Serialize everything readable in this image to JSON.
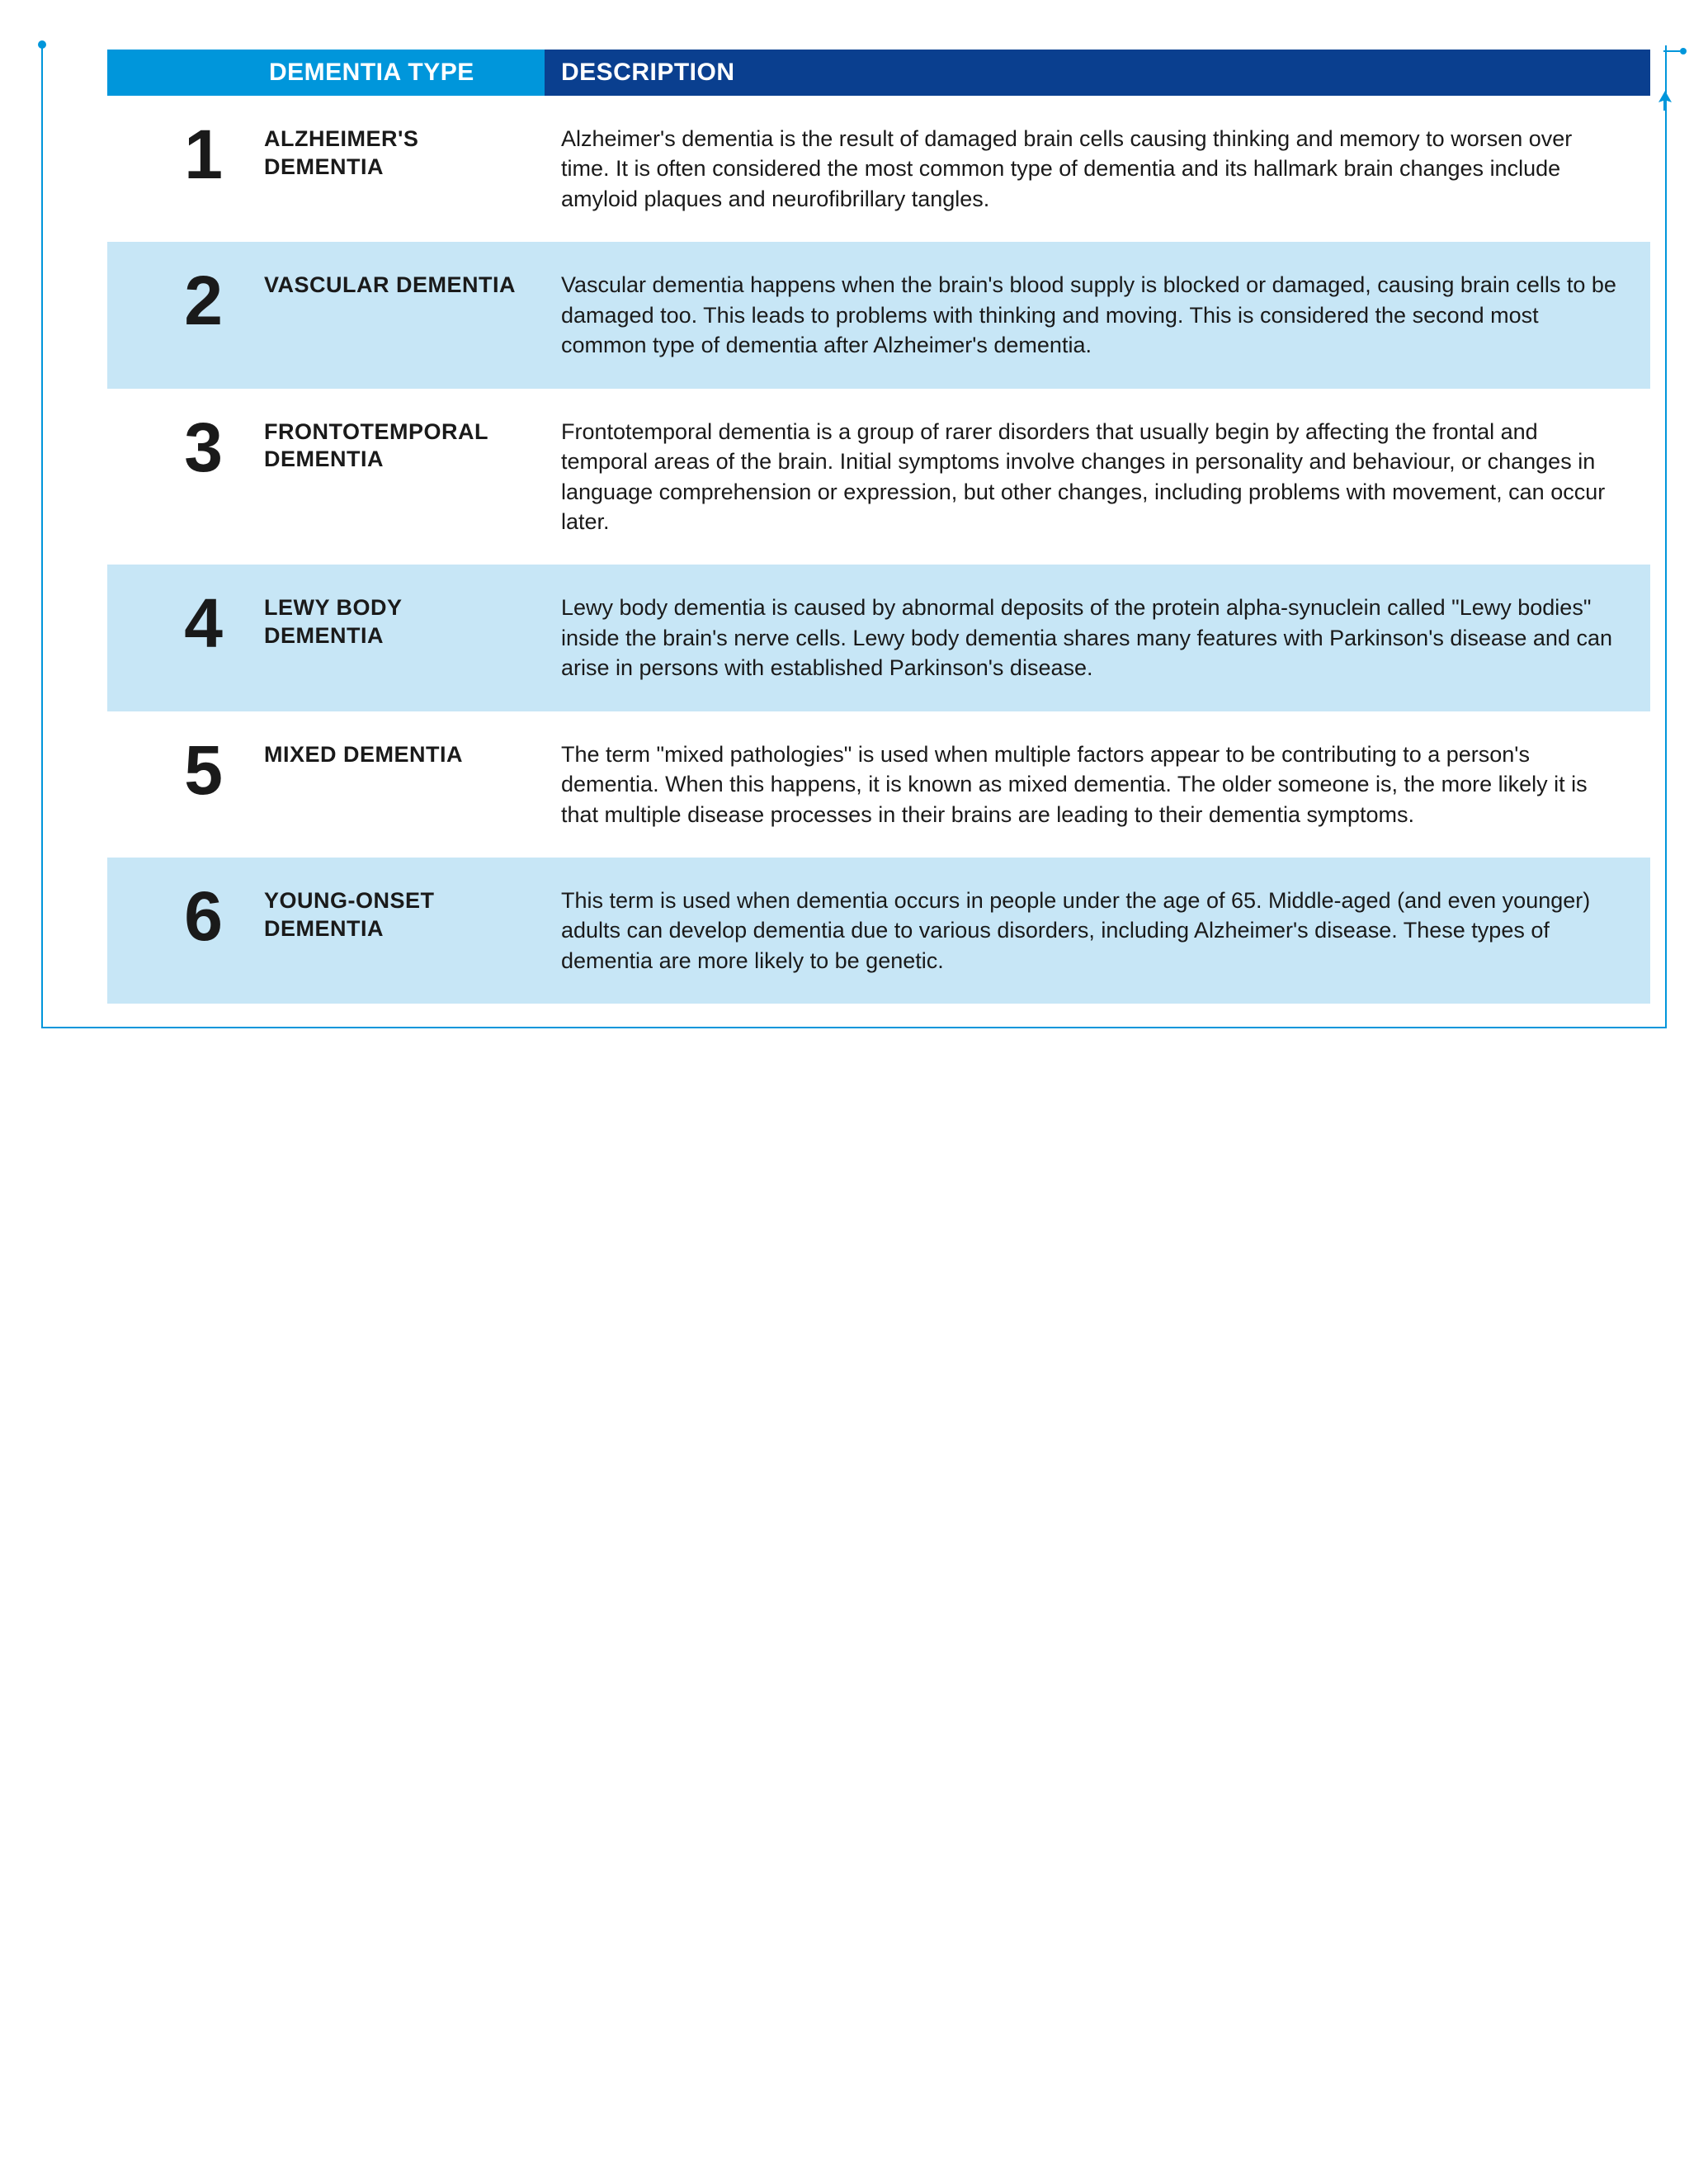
{
  "colors": {
    "header_num_bg": "#0096db",
    "header_type_bg": "#0096db",
    "header_desc_bg": "#0a3f8f",
    "header_text": "#ffffff",
    "row_odd_bg": "#ffffff",
    "row_even_bg": "#c7e6f6",
    "text": "#1a1a1a",
    "frame": "#0096db",
    "arrow": "#0096db"
  },
  "typography": {
    "header_fontsize": 30,
    "num_fontsize": 84,
    "type_fontsize": 27,
    "desc_fontsize": 27,
    "font_family": "sans-serif"
  },
  "layout": {
    "col_num_width": 190,
    "col_type_width": 340,
    "row_padding_v": 34
  },
  "headers": {
    "type": "DEMENTIA TYPE",
    "description": "DESCRIPTION"
  },
  "rows": [
    {
      "num": "1",
      "type": "ALZHEIMER'S DEMENTIA",
      "description": "Alzheimer's dementia is the result of damaged brain cells causing thinking and memory to worsen over time. It is often considered the most common type of dementia and its hallmark brain changes include amyloid plaques and neurofibrillary tangles."
    },
    {
      "num": "2",
      "type": "VASCULAR DEMENTIA",
      "description": "Vascular dementia happens when the brain's blood supply is blocked or damaged, causing brain cells to be damaged too. This leads to problems with thinking and moving. This is considered the second most common type of dementia after Alzheimer's dementia."
    },
    {
      "num": "3",
      "type": "FRONTOTEMPORAL DEMENTIA",
      "description": "Frontotemporal dementia is a group of rarer disorders that usually begin by affecting the frontal and temporal areas of the brain. Initial symptoms involve changes in personality and behaviour, or changes in language comprehension or expression, but other changes, including problems with movement, can occur later."
    },
    {
      "num": "4",
      "type": "LEWY BODY DEMENTIA",
      "description": "Lewy body dementia is caused by abnormal deposits of the protein alpha-synuclein called \"Lewy bodies\" inside the brain's nerve cells. Lewy body dementia shares many features with Parkinson's disease and can arise in persons with established Parkinson's disease."
    },
    {
      "num": "5",
      "type": "MIXED DEMENTIA",
      "description": "The term \"mixed pathologies\" is used when multiple factors appear to be contributing to a person's dementia. When this happens, it is known as mixed dementia. The older someone is, the more likely it is that multiple disease processes in their brains are leading to their dementia symptoms."
    },
    {
      "num": "6",
      "type": "YOUNG-ONSET DEMENTIA",
      "description": "This term is used when dementia occurs in people under the age of 65. Middle-aged (and even younger) adults can develop dementia due to various disorders, including Alzheimer's disease. These types of dementia are more likely to be genetic."
    }
  ]
}
